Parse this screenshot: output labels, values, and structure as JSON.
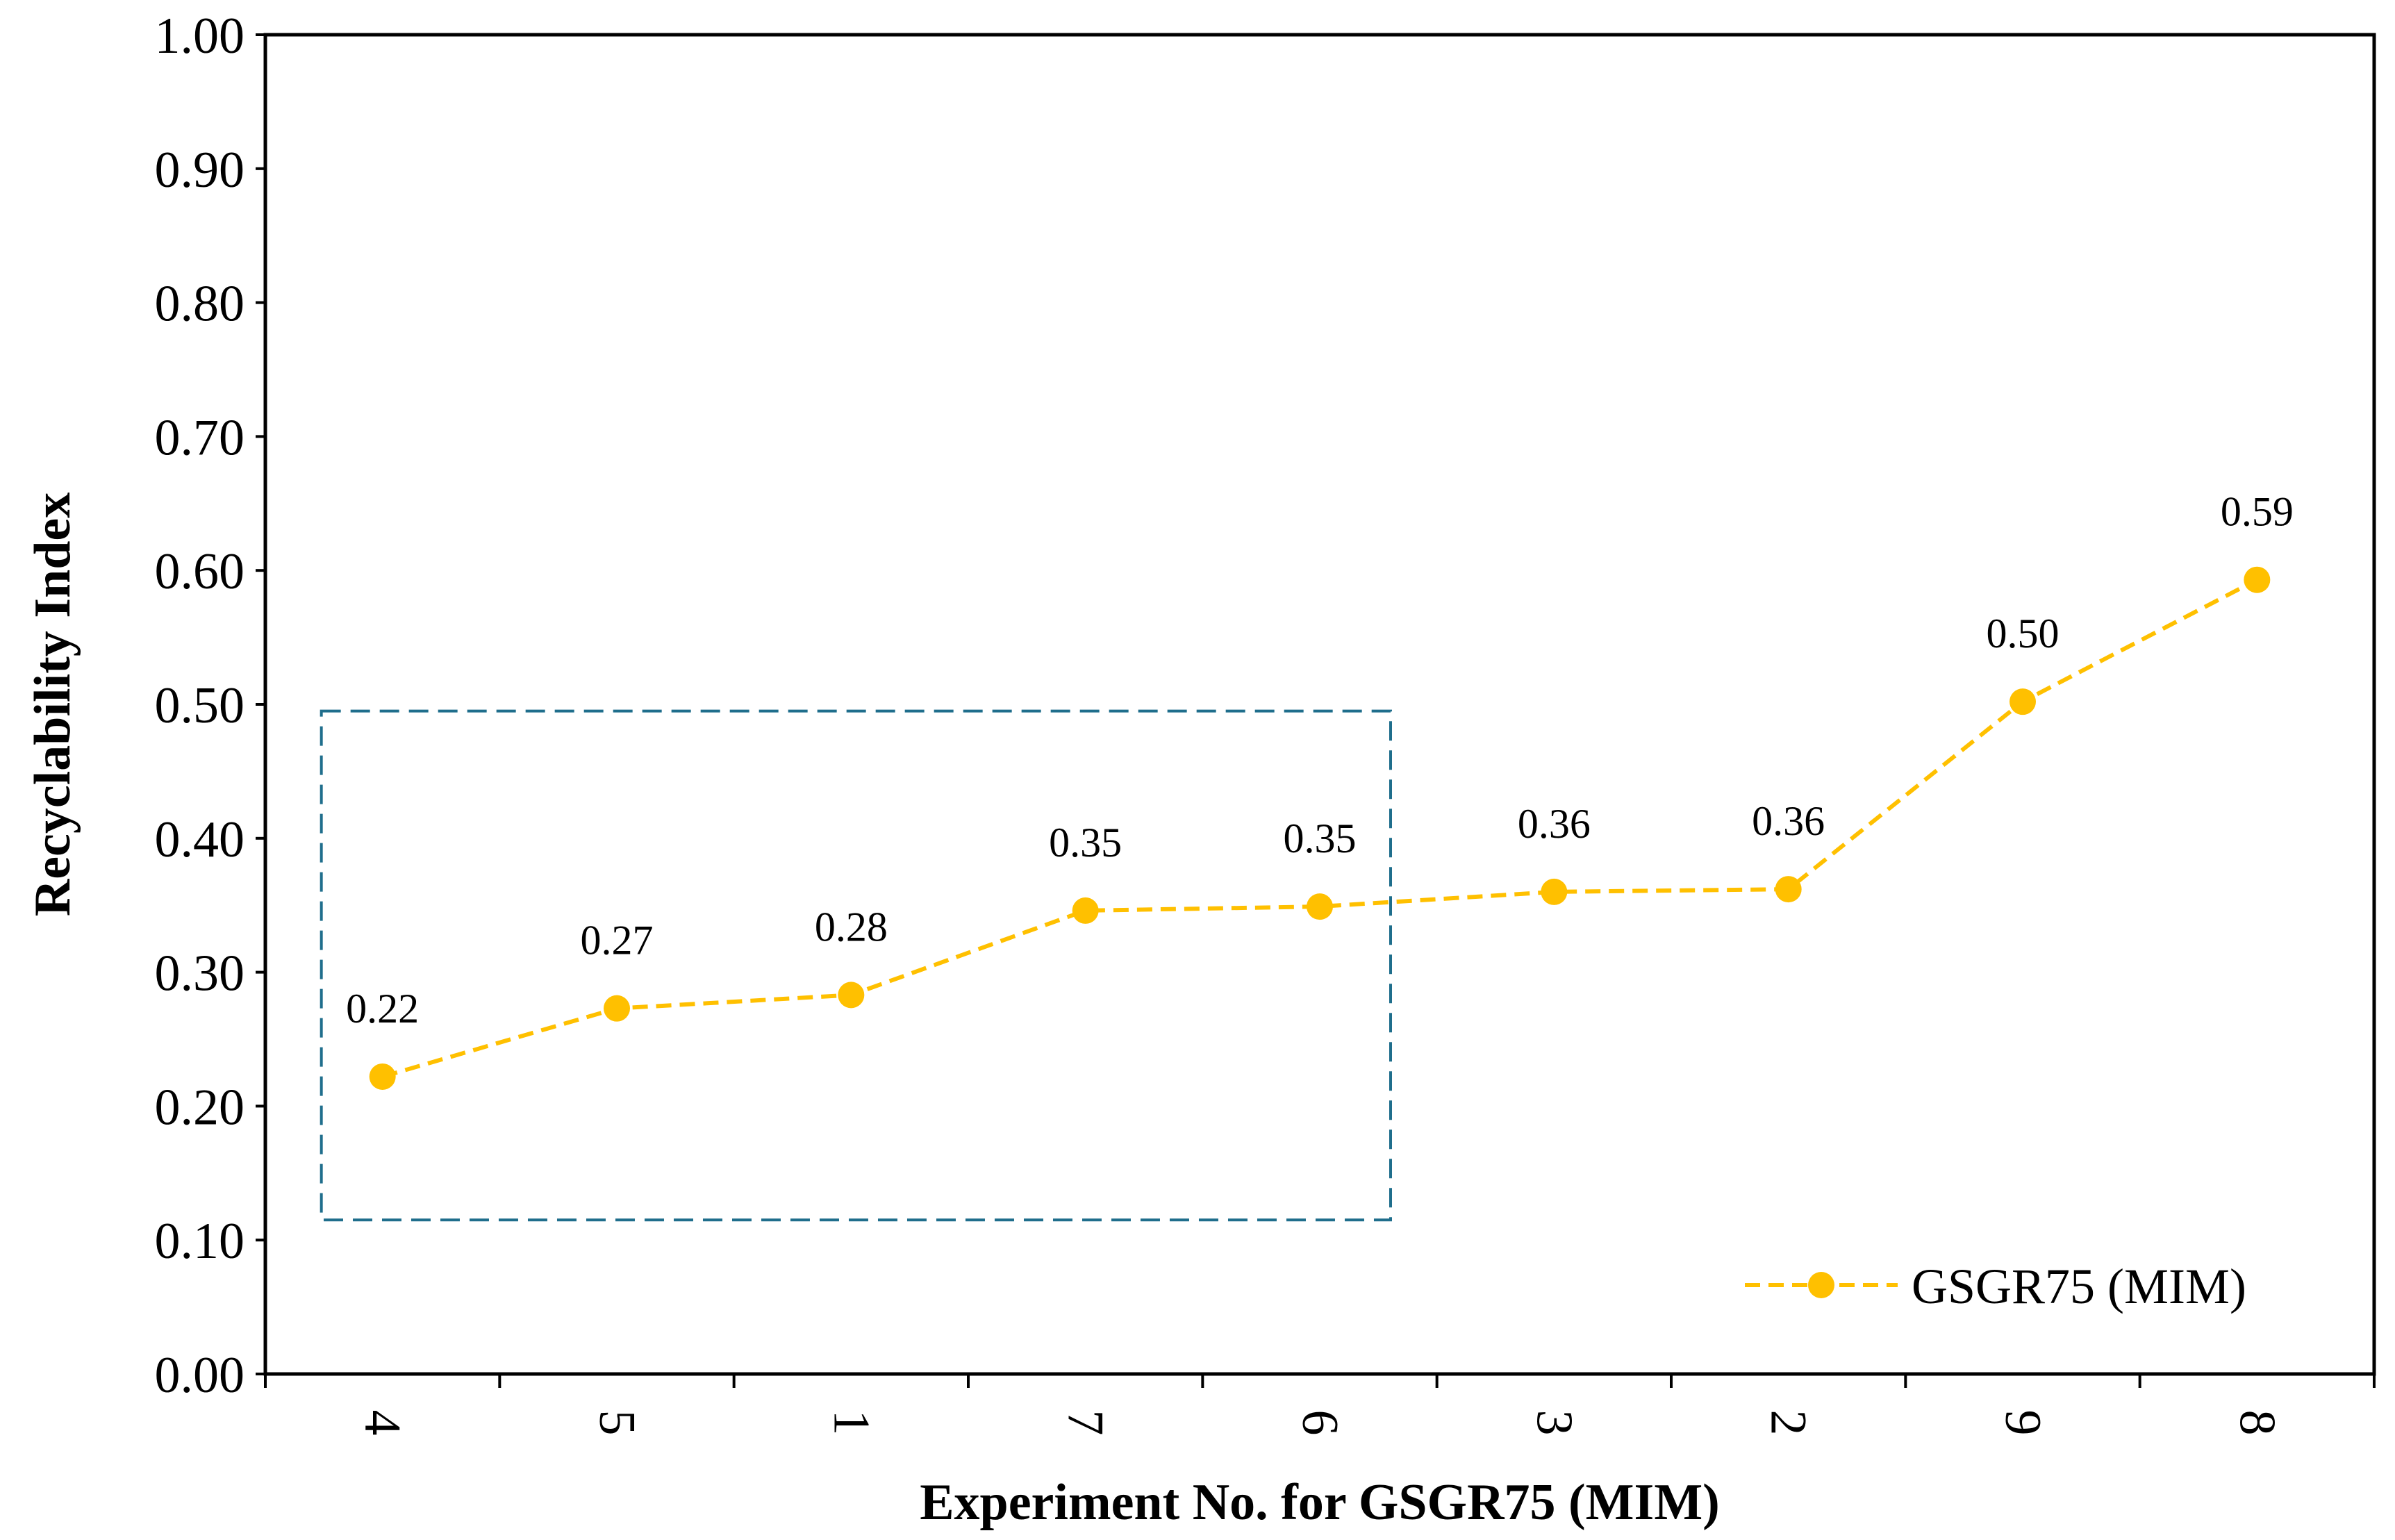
{
  "chart_data": {
    "type": "line",
    "title": "",
    "xlabel": "Experiment No. for GSGR75 (MIM)",
    "ylabel": "Recyclability Index",
    "categories": [
      "4",
      "5",
      "1",
      "7",
      "6",
      "3",
      "2",
      "9",
      "8"
    ],
    "series": [
      {
        "name": "GSGR75 (MIM)",
        "values": [
          0.222,
          0.273,
          0.283,
          0.346,
          0.349,
          0.36,
          0.362,
          0.502,
          0.593
        ],
        "labels": [
          "0.22",
          "0.27",
          "0.28",
          "0.35",
          "0.35",
          "0.36",
          "0.36",
          "0.50",
          "0.59"
        ],
        "color": "#FFC000",
        "line_style": "dashed",
        "marker": "circle"
      }
    ],
    "ylim": [
      0,
      1
    ],
    "yticks": [
      "0.00",
      "0.10",
      "0.20",
      "0.30",
      "0.40",
      "0.50",
      "0.60",
      "0.70",
      "0.80",
      "0.90",
      "1.00"
    ],
    "legend": {
      "position": "bottom-right"
    },
    "grid": false,
    "annotation": {
      "type": "dashed-rectangle",
      "color": "#1F6E8C",
      "x_range": [
        "4",
        "6"
      ],
      "y_range": [
        0.115,
        0.495
      ]
    }
  }
}
